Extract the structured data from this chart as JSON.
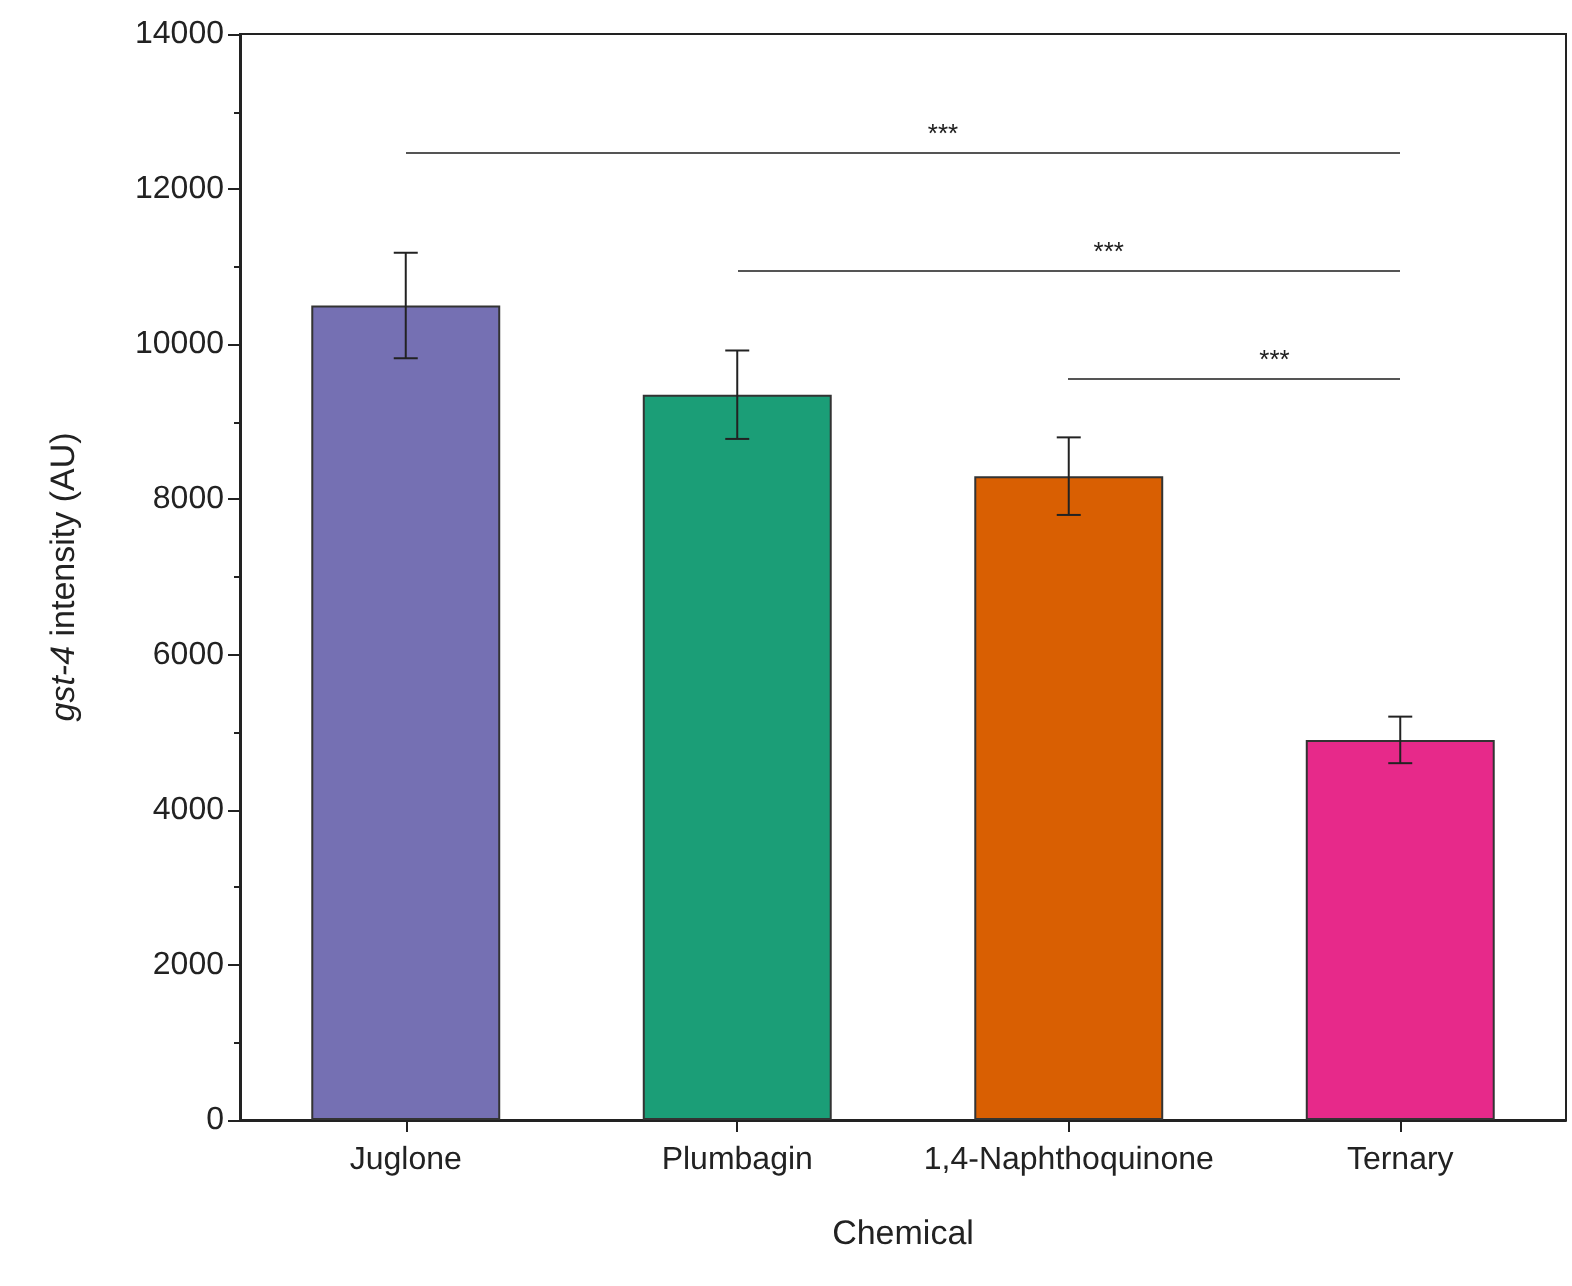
{
  "chart_data": {
    "type": "bar",
    "xlabel": "Chemical",
    "ylabel": "gst-4 intensity (AU)",
    "categories": [
      "Juglone",
      "Plumbagin",
      "1,4-Naphthoquinone",
      "Ternary"
    ],
    "values": [
      10500,
      9350,
      8300,
      4900
    ],
    "colors": [
      "#7570b3",
      "#1b9e77",
      "#d95f02",
      "#e7298a"
    ],
    "errors": [
      680,
      570,
      500,
      300
    ],
    "ylim": [
      0,
      14000
    ],
    "yticks": [
      0,
      2000,
      4000,
      6000,
      8000,
      10000,
      12000,
      14000
    ],
    "grid": false,
    "annotations": [
      "***",
      "***",
      "***"
    ]
  }
}
